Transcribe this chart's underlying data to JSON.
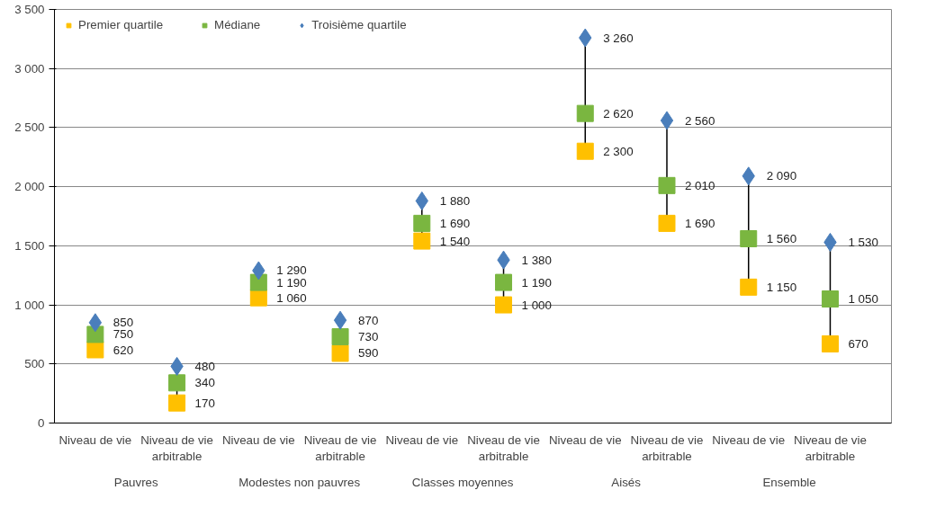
{
  "chart_data": {
    "type": "scatter",
    "categories": [
      "Niveau de vie",
      "Niveau de vie arbitrable",
      "Niveau de vie",
      "Niveau de vie arbitrable",
      "Niveau de vie",
      "Niveau de vie arbitrable",
      "Niveau de vie",
      "Niveau de vie arbitrable",
      "Niveau de vie",
      "Niveau de vie arbitrable"
    ],
    "annotations": [
      "Pauvres",
      "Modestes non pauvres",
      "Classes moyennes",
      "Aisés",
      "Ensemble"
    ],
    "series": [
      {
        "name": "Premier quartile",
        "color": "#ffc000",
        "marker": "square",
        "values": [
          620,
          170,
          1060,
          590,
          1540,
          1000,
          2300,
          1690,
          1150,
          670
        ]
      },
      {
        "name": "Médiane",
        "color": "#7ab640",
        "marker": "square",
        "values": [
          750,
          340,
          1190,
          730,
          1690,
          1190,
          2620,
          2010,
          1560,
          1050
        ]
      },
      {
        "name": "Troisième quartile",
        "color": "#4a7ebb",
        "marker": "diamond",
        "values": [
          850,
          480,
          1290,
          870,
          1880,
          1380,
          3260,
          2560,
          2090,
          1530
        ]
      }
    ],
    "ylim": [
      0,
      3500
    ],
    "yticks": [
      0,
      500,
      {
        "value": 1000,
        "label": "1 000"
      },
      {
        "value": 1500,
        "label": "1 500"
      },
      {
        "value": 2000,
        "label": "2 000"
      },
      {
        "value": 2500,
        "label": "2 500"
      },
      {
        "value": 3000,
        "label": "3 000"
      },
      {
        "value": 3500,
        "label": "3 500"
      }
    ],
    "grid": "y",
    "legend": "top left",
    "data_labels": true
  }
}
